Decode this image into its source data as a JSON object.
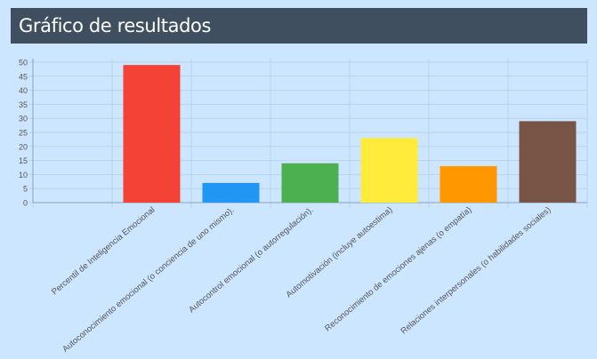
{
  "header": {
    "title": "Gráfico de resultados"
  },
  "colors": {
    "header_bg": "#3f4f60",
    "page_bg": "#cde6ff",
    "grid": "#b9d3ec",
    "axis": "#8aa0b6",
    "tick_text": "#555555"
  },
  "chart_data": {
    "type": "bar",
    "title": "",
    "xlabel": "",
    "ylabel": "",
    "ylim": [
      0,
      50
    ],
    "yticks": [
      0,
      5,
      10,
      15,
      20,
      25,
      30,
      35,
      40,
      45,
      50
    ],
    "grid": true,
    "legend": "none",
    "categories": [
      "",
      "Percentil de Inteligencia Emocional",
      "Autoconocimiento emocional (o conciencia de uno mismo).",
      "Autocontrol emocional (o autorregulación).",
      "Automotivación (incluye autoestima)",
      "Reconocimiento de emociones ajenas (o empatía)",
      "Relaciones interpersonales (o habilidades sociales)"
    ],
    "values": [
      0,
      49,
      7,
      14,
      23,
      13,
      29
    ],
    "bar_colors": [
      "#000000",
      "#f44336",
      "#2196f3",
      "#4caf50",
      "#ffeb3b",
      "#ff9800",
      "#795548"
    ]
  }
}
